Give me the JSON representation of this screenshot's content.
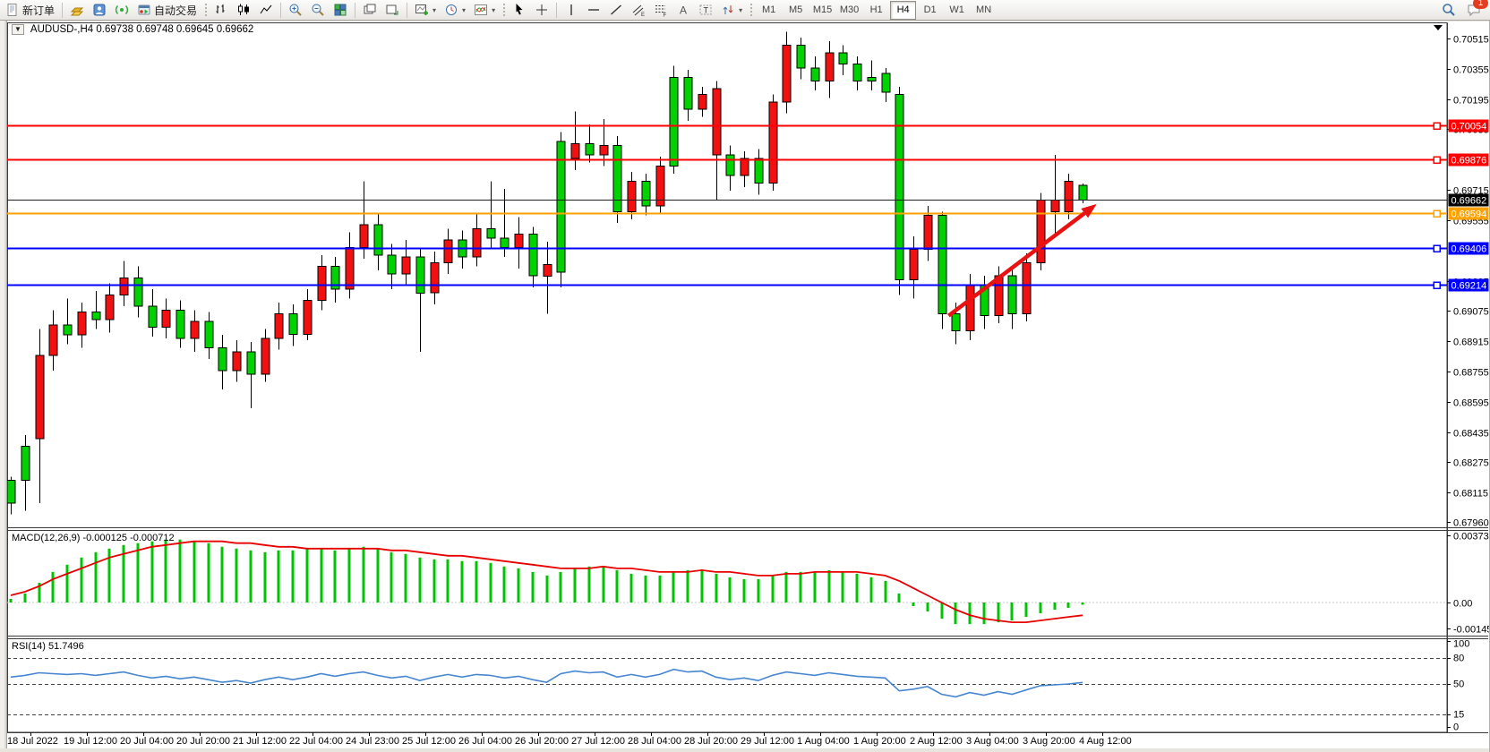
{
  "toolbar": {
    "new_order_label": "新订单",
    "auto_trading_label": "自动交易",
    "timeframes": [
      "M1",
      "M5",
      "M15",
      "M30",
      "H1",
      "H4",
      "D1",
      "W1",
      "MN"
    ],
    "active_timeframe": "H4",
    "notification_count": "1"
  },
  "chart": {
    "title_line": "AUDUSD-,H4  0.69738 0.69748 0.69645 0.69662"
  },
  "chart_data": {
    "type": "candlestick+indicators",
    "symbol": "AUDUSD-",
    "timeframe": "H4",
    "ohlc_display": {
      "open": "0.69738",
      "high": "0.69748",
      "low": "0.69645",
      "close": "0.69662"
    },
    "colors": {
      "bull": "#00d200",
      "bear": "#f21010",
      "wick": "#000000",
      "macd_histogram": "#00c400",
      "macd_signal": "#e80000",
      "rsi_line": "#4686d0",
      "arrow": "#e81212"
    },
    "candles": [
      [
        0.6806,
        0.682,
        0.68,
        0.6818,
        "g"
      ],
      [
        0.6818,
        0.6842,
        0.6802,
        0.6836,
        "g"
      ],
      [
        0.684,
        0.6898,
        0.6806,
        0.6884,
        "r"
      ],
      [
        0.6884,
        0.6908,
        0.6876,
        0.69,
        "r"
      ],
      [
        0.69,
        0.6914,
        0.689,
        0.6895,
        "g"
      ],
      [
        0.6895,
        0.6912,
        0.6888,
        0.6907,
        "r"
      ],
      [
        0.6907,
        0.6918,
        0.6898,
        0.6903,
        "g"
      ],
      [
        0.6903,
        0.6922,
        0.6896,
        0.6916,
        "r"
      ],
      [
        0.6916,
        0.6934,
        0.691,
        0.6925,
        "r"
      ],
      [
        0.6925,
        0.6931,
        0.6904,
        0.691,
        "g"
      ],
      [
        0.691,
        0.6919,
        0.6894,
        0.6899,
        "g"
      ],
      [
        0.6899,
        0.6914,
        0.6893,
        0.6908,
        "r"
      ],
      [
        0.6908,
        0.6913,
        0.6888,
        0.6893,
        "g"
      ],
      [
        0.6893,
        0.6908,
        0.6886,
        0.6902,
        "r"
      ],
      [
        0.6902,
        0.6907,
        0.6882,
        0.6888,
        "g"
      ],
      [
        0.6888,
        0.6895,
        0.6866,
        0.6876,
        "g"
      ],
      [
        0.6876,
        0.6892,
        0.687,
        0.6886,
        "r"
      ],
      [
        0.6886,
        0.6891,
        0.6856,
        0.6874,
        "g"
      ],
      [
        0.6874,
        0.6898,
        0.687,
        0.6893,
        "r"
      ],
      [
        0.6893,
        0.6912,
        0.6887,
        0.6906,
        "r"
      ],
      [
        0.6906,
        0.6911,
        0.6889,
        0.6895,
        "g"
      ],
      [
        0.6895,
        0.6919,
        0.6892,
        0.6913,
        "r"
      ],
      [
        0.6913,
        0.6937,
        0.6908,
        0.6931,
        "r"
      ],
      [
        0.6931,
        0.6936,
        0.6912,
        0.6919,
        "g"
      ],
      [
        0.6919,
        0.6949,
        0.6914,
        0.6941,
        "r"
      ],
      [
        0.6941,
        0.6976,
        0.6935,
        0.6953,
        "r"
      ],
      [
        0.6953,
        0.6959,
        0.6929,
        0.6937,
        "g"
      ],
      [
        0.6937,
        0.6943,
        0.6919,
        0.6927,
        "g"
      ],
      [
        0.6927,
        0.6945,
        0.6921,
        0.6936,
        "r"
      ],
      [
        0.6936,
        0.6941,
        0.6886,
        0.6917,
        "g"
      ],
      [
        0.6917,
        0.6939,
        0.6911,
        0.6933,
        "r"
      ],
      [
        0.6933,
        0.6951,
        0.6927,
        0.6945,
        "r"
      ],
      [
        0.6945,
        0.695,
        0.693,
        0.6936,
        "g"
      ],
      [
        0.6936,
        0.6959,
        0.6931,
        0.6951,
        "r"
      ],
      [
        0.6951,
        0.6976,
        0.6941,
        0.6946,
        "g"
      ],
      [
        0.6946,
        0.6972,
        0.6936,
        0.6941,
        "g"
      ],
      [
        0.6941,
        0.6957,
        0.693,
        0.6948,
        "r"
      ],
      [
        0.6948,
        0.6952,
        0.692,
        0.6926,
        "g"
      ],
      [
        0.6926,
        0.6944,
        0.6906,
        0.6932,
        "r"
      ],
      [
        0.6928,
        0.7002,
        0.692,
        0.6997,
        "g"
      ],
      [
        0.6988,
        0.7013,
        0.6982,
        0.6996,
        "r"
      ],
      [
        0.6996,
        0.7006,
        0.6986,
        0.699,
        "g"
      ],
      [
        0.699,
        0.7009,
        0.6984,
        0.6995,
        "r"
      ],
      [
        0.6995,
        0.7,
        0.6954,
        0.696,
        "g"
      ],
      [
        0.696,
        0.6981,
        0.6956,
        0.6976,
        "r"
      ],
      [
        0.6976,
        0.698,
        0.6958,
        0.6963,
        "g"
      ],
      [
        0.6963,
        0.6989,
        0.6959,
        0.6984,
        "r"
      ],
      [
        0.6984,
        0.7037,
        0.698,
        0.7031,
        "g"
      ],
      [
        0.7031,
        0.7035,
        0.7008,
        0.7014,
        "g"
      ],
      [
        0.7014,
        0.7026,
        0.701,
        0.7022,
        "r"
      ],
      [
        0.7025,
        0.7029,
        0.6966,
        0.699,
        "r"
      ],
      [
        0.699,
        0.6995,
        0.6971,
        0.6979,
        "g"
      ],
      [
        0.6979,
        0.6992,
        0.6973,
        0.6988,
        "r"
      ],
      [
        0.6988,
        0.6993,
        0.6969,
        0.6975,
        "g"
      ],
      [
        0.6975,
        0.7022,
        0.6971,
        0.7018,
        "r"
      ],
      [
        0.7018,
        0.7055,
        0.7012,
        0.7048,
        "r"
      ],
      [
        0.7048,
        0.7052,
        0.703,
        0.7036,
        "g"
      ],
      [
        0.7036,
        0.7042,
        0.7024,
        0.7029,
        "g"
      ],
      [
        0.7029,
        0.705,
        0.702,
        0.7044,
        "r"
      ],
      [
        0.7044,
        0.7048,
        0.7032,
        0.7038,
        "g"
      ],
      [
        0.7038,
        0.7042,
        0.7024,
        0.7029,
        "g"
      ],
      [
        0.7031,
        0.704,
        0.7024,
        0.7029,
        "g"
      ],
      [
        0.7033,
        0.7036,
        0.7018,
        0.7023,
        "g"
      ],
      [
        0.7022,
        0.7026,
        0.6916,
        0.6924,
        "g"
      ],
      [
        0.6924,
        0.6947,
        0.6914,
        0.694,
        "r"
      ],
      [
        0.694,
        0.6963,
        0.6934,
        0.6958,
        "r"
      ],
      [
        0.6958,
        0.696,
        0.6898,
        0.6906,
        "g"
      ],
      [
        0.6906,
        0.6912,
        0.689,
        0.6897,
        "g"
      ],
      [
        0.6897,
        0.6927,
        0.6892,
        0.6921,
        "r"
      ],
      [
        0.6921,
        0.6926,
        0.6898,
        0.6905,
        "g"
      ],
      [
        0.6905,
        0.6931,
        0.6901,
        0.6926,
        "r"
      ],
      [
        0.6926,
        0.693,
        0.6898,
        0.6906,
        "g"
      ],
      [
        0.6906,
        0.6938,
        0.6902,
        0.6933,
        "r"
      ],
      [
        0.6933,
        0.697,
        0.6929,
        0.6966,
        "r"
      ],
      [
        0.6966,
        0.699,
        0.6948,
        0.696,
        "r"
      ],
      [
        0.696,
        0.698,
        0.6956,
        0.6976,
        "r"
      ],
      [
        0.69738,
        0.69748,
        0.69645,
        0.69662,
        "g"
      ]
    ],
    "hlines": [
      {
        "price": 0.70054,
        "color": "#ff0000",
        "width": 2,
        "label": "0.70054",
        "marker": true
      },
      {
        "price": 0.69876,
        "color": "#ff0000",
        "width": 2,
        "label": "0.69876",
        "marker": true
      },
      {
        "price": 0.69662,
        "color": "#202020",
        "width": 1,
        "label": "0.69662",
        "marker": false,
        "badge": "#000000"
      },
      {
        "price": 0.69594,
        "color": "#ffa200",
        "width": 2,
        "label": "0.69594",
        "marker": true
      },
      {
        "price": 0.69406,
        "color": "#0000ff",
        "width": 2.4,
        "label": "0.69406",
        "marker": true
      },
      {
        "price": 0.69214,
        "color": "#0000ff",
        "width": 2.4,
        "label": "0.69214",
        "marker": true
      }
    ],
    "arrow": {
      "from": {
        "index": 66.5,
        "price": 0.6905
      },
      "to": {
        "index": 77,
        "price": 0.6964
      }
    },
    "price_axis": {
      "min": "0.67960",
      "max": "0.70515",
      "ticks": [
        "0.70515",
        "0.70355",
        "0.70195",
        "0.70035",
        "0.69715",
        "0.69555",
        "0.69235",
        "0.69075",
        "0.68915",
        "0.68755",
        "0.68595",
        "0.68435",
        "0.68275",
        "0.68115",
        "0.67960"
      ]
    },
    "macd": {
      "label_line": "MACD(12,26,9) -0.000125 -0.000712",
      "name": "MACD",
      "params": "12,26,9",
      "value_main": "-0.000125",
      "value_signal": "-0.000712",
      "axis": [
        "0.00373",
        "0.00",
        "-0.00145"
      ],
      "histogram": [
        0.0002,
        0.0005,
        0.0011,
        0.0017,
        0.0021,
        0.0025,
        0.0028,
        0.003,
        0.0032,
        0.0033,
        0.0034,
        0.0035,
        0.0035,
        0.0034,
        0.0033,
        0.0031,
        0.003,
        0.0029,
        0.0028,
        0.0029,
        0.0029,
        0.003,
        0.003,
        0.0029,
        0.003,
        0.0031,
        0.003,
        0.0028,
        0.0027,
        0.0025,
        0.0024,
        0.0024,
        0.0023,
        0.0023,
        0.0022,
        0.002,
        0.0019,
        0.0017,
        0.0015,
        0.0017,
        0.0019,
        0.002,
        0.002,
        0.0018,
        0.0016,
        0.0015,
        0.0015,
        0.0017,
        0.0018,
        0.0018,
        0.0016,
        0.0014,
        0.0013,
        0.0013,
        0.0015,
        0.0017,
        0.0017,
        0.0017,
        0.0018,
        0.0017,
        0.0016,
        0.0014,
        0.0012,
        0.0005,
        -0.0002,
        -0.0005,
        -0.0009,
        -0.0012,
        -0.0012,
        -0.0012,
        -0.0011,
        -0.001,
        -0.0008,
        -0.0006,
        -0.0004,
        -0.0003,
        -0.000125
      ],
      "signal": [
        0.0004,
        0.0006,
        0.0009,
        0.0013,
        0.0016,
        0.0019,
        0.0022,
        0.0025,
        0.0027,
        0.0029,
        0.0031,
        0.0032,
        0.0033,
        0.0034,
        0.0034,
        0.0034,
        0.0033,
        0.0033,
        0.0032,
        0.0031,
        0.0031,
        0.003,
        0.003,
        0.003,
        0.003,
        0.003,
        0.003,
        0.0029,
        0.0029,
        0.0028,
        0.0027,
        0.0026,
        0.0026,
        0.0025,
        0.0024,
        0.0023,
        0.0022,
        0.0021,
        0.002,
        0.0019,
        0.0019,
        0.0019,
        0.002,
        0.0019,
        0.0019,
        0.0018,
        0.0017,
        0.0017,
        0.0017,
        0.0018,
        0.0017,
        0.0017,
        0.0016,
        0.0015,
        0.0015,
        0.0016,
        0.0016,
        0.0017,
        0.0017,
        0.0017,
        0.0017,
        0.0016,
        0.0015,
        0.0012,
        0.0008,
        0.0004,
        0.0,
        -0.0004,
        -0.0007,
        -0.0009,
        -0.001,
        -0.0011,
        -0.0011,
        -0.001,
        -0.0009,
        -0.0008,
        -0.000712
      ]
    },
    "rsi": {
      "label_line": "RSI(14) 51.7496",
      "name": "RSI",
      "params": "14",
      "value": "51.7496",
      "axis": [
        "100",
        "80",
        "50",
        "15",
        "0"
      ],
      "levels": [
        80,
        50,
        15
      ],
      "series": [
        58,
        60,
        63,
        62,
        61,
        62,
        60,
        62,
        64,
        60,
        57,
        59,
        56,
        58,
        55,
        52,
        54,
        51,
        55,
        58,
        55,
        58,
        62,
        59,
        62,
        64,
        60,
        57,
        59,
        54,
        58,
        61,
        58,
        61,
        60,
        57,
        59,
        55,
        52,
        62,
        65,
        63,
        64,
        58,
        61,
        58,
        61,
        67,
        64,
        65,
        58,
        55,
        57,
        54,
        60,
        64,
        62,
        60,
        63,
        61,
        59,
        58,
        57,
        42,
        44,
        47,
        38,
        35,
        40,
        37,
        41,
        38,
        43,
        48,
        49,
        50,
        51.75
      ]
    },
    "time_labels": [
      "18 Jul 2022",
      "19 Jul 12:00",
      "20 Jul 04:00",
      "20 Jul 20:00",
      "21 Jul 12:00",
      "22 Jul 04:00",
      "24 Jul 23:00",
      "25 Jul 12:00",
      "26 Jul 04:00",
      "26 Jul 20:00",
      "27 Jul 12:00",
      "28 Jul 04:00",
      "28 Jul 20:00",
      "29 Jul 12:00",
      "1 Aug 04:00",
      "1 Aug 20:00",
      "2 Aug 12:00",
      "3 Aug 04:00",
      "3 Aug 20:00",
      "4 Aug 12:00"
    ]
  }
}
